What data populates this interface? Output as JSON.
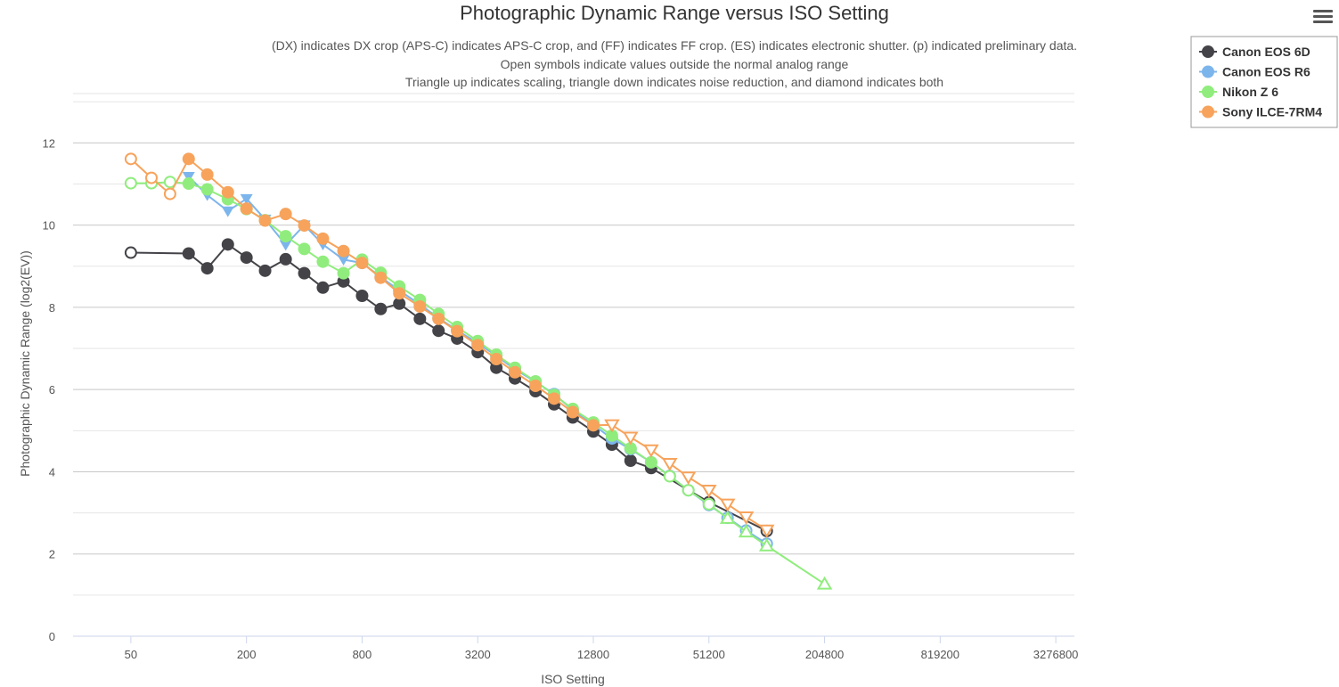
{
  "menu": {
    "icon": "hamburger-menu-icon"
  },
  "chart_data": {
    "type": "line",
    "title": "Photographic Dynamic Range versus ISO Setting",
    "subtitle": [
      "(DX) indicates DX crop (APS-C) indicates APS-C crop, and (FF) indicates FF crop. (ES) indicates electronic shutter. (p) indicated preliminary data.",
      "Open symbols indicate values outside the normal analog range",
      "Triangle up indicates scaling, triangle down indicates noise reduction, and diamond indicates both"
    ],
    "xlabel": "ISO Setting",
    "ylabel": "Photographic Dynamic Range (log2(EV))",
    "x_scale": "log2",
    "xlim": [
      25,
      4096000
    ],
    "ylim": [
      0,
      13.2
    ],
    "x_ticks": [
      "50",
      "200",
      "800",
      "3200",
      "12800",
      "51200",
      "204800",
      "819200",
      "3276800"
    ],
    "y_ticks": [
      "0",
      "2",
      "4",
      "6",
      "8",
      "10",
      "12"
    ],
    "grid": true,
    "legend_position": "top-right",
    "series": [
      {
        "name": "Canon EOS 6D",
        "color": "#434348",
        "points": [
          {
            "x": 50,
            "y": 9.33,
            "m": "open-circle"
          },
          {
            "x": 100,
            "y": 9.31,
            "m": "circle"
          },
          {
            "x": 125,
            "y": 8.95,
            "m": "circle"
          },
          {
            "x": 160,
            "y": 9.53,
            "m": "circle"
          },
          {
            "x": 200,
            "y": 9.21,
            "m": "circle"
          },
          {
            "x": 250,
            "y": 8.89,
            "m": "circle"
          },
          {
            "x": 320,
            "y": 9.17,
            "m": "circle"
          },
          {
            "x": 400,
            "y": 8.83,
            "m": "circle"
          },
          {
            "x": 500,
            "y": 8.48,
            "m": "circle"
          },
          {
            "x": 640,
            "y": 8.63,
            "m": "circle"
          },
          {
            "x": 800,
            "y": 8.28,
            "m": "circle"
          },
          {
            "x": 1000,
            "y": 7.96,
            "m": "circle"
          },
          {
            "x": 1250,
            "y": 8.09,
            "m": "circle"
          },
          {
            "x": 1600,
            "y": 7.72,
            "m": "circle"
          },
          {
            "x": 2000,
            "y": 7.43,
            "m": "circle"
          },
          {
            "x": 2500,
            "y": 7.24,
            "m": "circle"
          },
          {
            "x": 3200,
            "y": 6.91,
            "m": "circle"
          },
          {
            "x": 4000,
            "y": 6.53,
            "m": "circle"
          },
          {
            "x": 5000,
            "y": 6.27,
            "m": "circle"
          },
          {
            "x": 6400,
            "y": 5.96,
            "m": "circle"
          },
          {
            "x": 8000,
            "y": 5.64,
            "m": "circle"
          },
          {
            "x": 10000,
            "y": 5.32,
            "m": "circle"
          },
          {
            "x": 12800,
            "y": 4.98,
            "m": "circle"
          },
          {
            "x": 16000,
            "y": 4.66,
            "m": "circle"
          },
          {
            "x": 20000,
            "y": 4.27,
            "m": "circle"
          },
          {
            "x": 25600,
            "y": 4.09,
            "m": "circle"
          },
          {
            "x": 51200,
            "y": 3.26,
            "m": "open-circle"
          },
          {
            "x": 102400,
            "y": 2.56,
            "m": "open-circle"
          }
        ]
      },
      {
        "name": "Canon EOS R6",
        "color": "#7cb5ec",
        "points": [
          {
            "x": 100,
            "y": 11.18,
            "m": "triangle-down"
          },
          {
            "x": 125,
            "y": 10.73,
            "m": "triangle-down"
          },
          {
            "x": 160,
            "y": 10.34,
            "m": "triangle-down"
          },
          {
            "x": 200,
            "y": 10.64,
            "m": "triangle-down"
          },
          {
            "x": 250,
            "y": 10.14,
            "m": "triangle-down"
          },
          {
            "x": 320,
            "y": 9.52,
            "m": "triangle-down"
          },
          {
            "x": 400,
            "y": 10.0,
            "m": "triangle-down"
          },
          {
            "x": 500,
            "y": 9.53,
            "m": "triangle-down"
          },
          {
            "x": 640,
            "y": 9.16,
            "m": "triangle-down"
          },
          {
            "x": 800,
            "y": 9.08,
            "m": "circle"
          },
          {
            "x": 1000,
            "y": 8.74,
            "m": "circle"
          },
          {
            "x": 1250,
            "y": 8.41,
            "m": "circle"
          },
          {
            "x": 1600,
            "y": 8.07,
            "m": "circle"
          },
          {
            "x": 2000,
            "y": 7.74,
            "m": "circle"
          },
          {
            "x": 2500,
            "y": 7.44,
            "m": "circle"
          },
          {
            "x": 3200,
            "y": 7.13,
            "m": "circle"
          },
          {
            "x": 4000,
            "y": 6.82,
            "m": "circle"
          },
          {
            "x": 5000,
            "y": 6.49,
            "m": "circle"
          },
          {
            "x": 6400,
            "y": 6.19,
            "m": "circle"
          },
          {
            "x": 8000,
            "y": 5.89,
            "m": "circle"
          },
          {
            "x": 10000,
            "y": 5.5,
            "m": "circle"
          },
          {
            "x": 12800,
            "y": 5.14,
            "m": "circle"
          },
          {
            "x": 16000,
            "y": 4.81,
            "m": "circle"
          },
          {
            "x": 20000,
            "y": 4.55,
            "m": "circle"
          },
          {
            "x": 25600,
            "y": 4.23,
            "m": "circle"
          },
          {
            "x": 32000,
            "y": 3.9,
            "m": "open-circle"
          },
          {
            "x": 40000,
            "y": 3.55,
            "m": "open-circle"
          },
          {
            "x": 51200,
            "y": 3.19,
            "m": "open-circle"
          },
          {
            "x": 64000,
            "y": 2.88,
            "m": "open-circle"
          },
          {
            "x": 80000,
            "y": 2.57,
            "m": "open-circle"
          },
          {
            "x": 102400,
            "y": 2.25,
            "m": "open-circle"
          }
        ]
      },
      {
        "name": "Nikon Z 6",
        "color": "#90ed7d",
        "points": [
          {
            "x": 50,
            "y": 11.02,
            "m": "open-circle"
          },
          {
            "x": 64,
            "y": 11.02,
            "m": "open-circle"
          },
          {
            "x": 80,
            "y": 11.05,
            "m": "open-circle"
          },
          {
            "x": 100,
            "y": 11.01,
            "m": "circle"
          },
          {
            "x": 125,
            "y": 10.87,
            "m": "circle"
          },
          {
            "x": 160,
            "y": 10.63,
            "m": "circle"
          },
          {
            "x": 200,
            "y": 10.39,
            "m": "circle"
          },
          {
            "x": 250,
            "y": 10.12,
            "m": "circle"
          },
          {
            "x": 320,
            "y": 9.73,
            "m": "circle"
          },
          {
            "x": 400,
            "y": 9.42,
            "m": "circle"
          },
          {
            "x": 500,
            "y": 9.11,
            "m": "circle"
          },
          {
            "x": 640,
            "y": 8.83,
            "m": "circle"
          },
          {
            "x": 800,
            "y": 9.16,
            "m": "circle"
          },
          {
            "x": 1000,
            "y": 8.84,
            "m": "circle"
          },
          {
            "x": 1250,
            "y": 8.51,
            "m": "circle"
          },
          {
            "x": 1600,
            "y": 8.18,
            "m": "circle"
          },
          {
            "x": 2000,
            "y": 7.84,
            "m": "circle"
          },
          {
            "x": 2500,
            "y": 7.52,
            "m": "circle"
          },
          {
            "x": 3200,
            "y": 7.18,
            "m": "circle"
          },
          {
            "x": 4000,
            "y": 6.85,
            "m": "circle"
          },
          {
            "x": 5000,
            "y": 6.53,
            "m": "circle"
          },
          {
            "x": 6400,
            "y": 6.2,
            "m": "circle"
          },
          {
            "x": 8000,
            "y": 5.87,
            "m": "circle"
          },
          {
            "x": 10000,
            "y": 5.53,
            "m": "circle"
          },
          {
            "x": 12800,
            "y": 5.2,
            "m": "circle"
          },
          {
            "x": 16000,
            "y": 4.88,
            "m": "circle"
          },
          {
            "x": 20000,
            "y": 4.57,
            "m": "circle"
          },
          {
            "x": 25600,
            "y": 4.23,
            "m": "circle"
          },
          {
            "x": 32000,
            "y": 3.89,
            "m": "open-circle"
          },
          {
            "x": 40000,
            "y": 3.55,
            "m": "open-circle"
          },
          {
            "x": 51200,
            "y": 3.21,
            "m": "open-circle"
          },
          {
            "x": 64000,
            "y": 2.87,
            "m": "open-triangle-up"
          },
          {
            "x": 80000,
            "y": 2.54,
            "m": "open-triangle-up"
          },
          {
            "x": 102400,
            "y": 2.2,
            "m": "open-triangle-up"
          },
          {
            "x": 204800,
            "y": 1.27,
            "m": "open-triangle-up"
          }
        ]
      },
      {
        "name": "Sony ILCE-7RM4",
        "color": "#f7a35c",
        "points": [
          {
            "x": 50,
            "y": 11.61,
            "m": "open-circle"
          },
          {
            "x": 64,
            "y": 11.15,
            "m": "open-circle"
          },
          {
            "x": 80,
            "y": 10.76,
            "m": "open-circle"
          },
          {
            "x": 100,
            "y": 11.61,
            "m": "circle"
          },
          {
            "x": 125,
            "y": 11.23,
            "m": "circle"
          },
          {
            "x": 160,
            "y": 10.8,
            "m": "circle"
          },
          {
            "x": 200,
            "y": 10.4,
            "m": "circle"
          },
          {
            "x": 250,
            "y": 10.11,
            "m": "circle"
          },
          {
            "x": 320,
            "y": 10.27,
            "m": "circle"
          },
          {
            "x": 400,
            "y": 9.99,
            "m": "circle"
          },
          {
            "x": 500,
            "y": 9.67,
            "m": "circle"
          },
          {
            "x": 640,
            "y": 9.37,
            "m": "circle"
          },
          {
            "x": 800,
            "y": 9.08,
            "m": "circle"
          },
          {
            "x": 1000,
            "y": 8.72,
            "m": "circle"
          },
          {
            "x": 1250,
            "y": 8.34,
            "m": "circle"
          },
          {
            "x": 1600,
            "y": 8.02,
            "m": "circle"
          },
          {
            "x": 2000,
            "y": 7.72,
            "m": "circle"
          },
          {
            "x": 2500,
            "y": 7.42,
            "m": "circle"
          },
          {
            "x": 3200,
            "y": 7.08,
            "m": "circle"
          },
          {
            "x": 4000,
            "y": 6.74,
            "m": "circle"
          },
          {
            "x": 5000,
            "y": 6.42,
            "m": "circle"
          },
          {
            "x": 6400,
            "y": 6.09,
            "m": "circle"
          },
          {
            "x": 8000,
            "y": 5.78,
            "m": "circle"
          },
          {
            "x": 10000,
            "y": 5.45,
            "m": "circle"
          },
          {
            "x": 12800,
            "y": 5.13,
            "m": "circle"
          },
          {
            "x": 16000,
            "y": 5.14,
            "m": "open-triangle-down"
          },
          {
            "x": 20000,
            "y": 4.84,
            "m": "open-triangle-down"
          },
          {
            "x": 25600,
            "y": 4.53,
            "m": "open-triangle-down"
          },
          {
            "x": 32000,
            "y": 4.2,
            "m": "open-triangle-down"
          },
          {
            "x": 40000,
            "y": 3.87,
            "m": "open-triangle-down"
          },
          {
            "x": 51200,
            "y": 3.55,
            "m": "open-triangle-down"
          },
          {
            "x": 64000,
            "y": 3.21,
            "m": "open-triangle-down"
          },
          {
            "x": 80000,
            "y": 2.9,
            "m": "open-triangle-down"
          },
          {
            "x": 102400,
            "y": 2.58,
            "m": "open-triangle-down"
          }
        ]
      }
    ]
  }
}
